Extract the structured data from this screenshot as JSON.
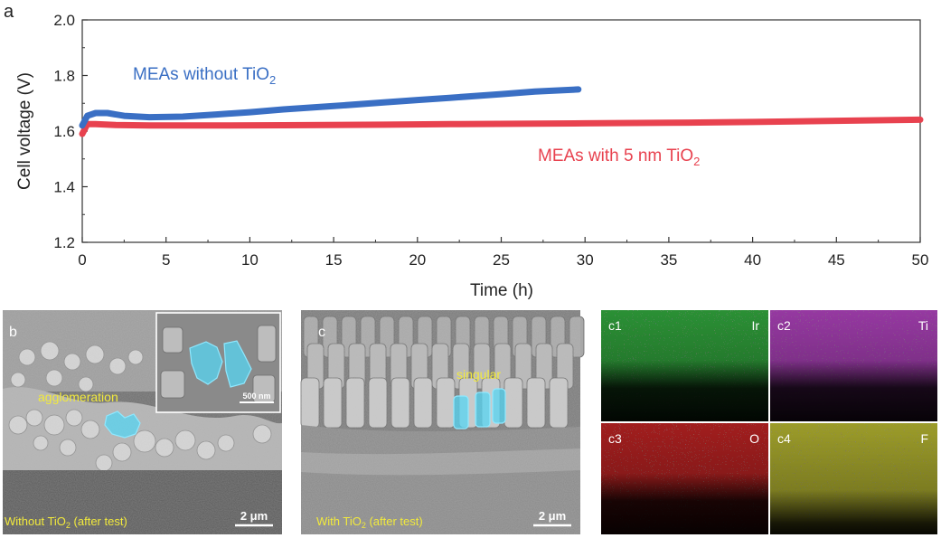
{
  "figure": {
    "panel_a_label": "a",
    "panel_b_label": "b",
    "panel_c_label": "c"
  },
  "chart_data": {
    "type": "line",
    "title": "",
    "xlabel": "Time (h)",
    "ylabel": "Cell voltage (V)",
    "xlim": [
      0,
      50
    ],
    "ylim": [
      1.2,
      2.0
    ],
    "xticks": [
      0,
      5,
      10,
      15,
      20,
      25,
      30,
      35,
      40,
      45,
      50
    ],
    "yticks": [
      1.2,
      1.4,
      1.6,
      1.8,
      2.0
    ],
    "ytick_labels": [
      "1.2",
      "1.4",
      "1.6",
      "1.8",
      "2.0"
    ],
    "grid": false,
    "series": [
      {
        "name": "MEAs without TiO",
        "subscript": "2",
        "color": "#3a6fc4",
        "x": [
          0,
          0.3,
          0.8,
          1.5,
          2.5,
          4,
          6,
          8,
          10,
          12,
          15,
          18,
          20,
          22,
          25,
          27,
          29.6
        ],
        "y": [
          1.62,
          1.655,
          1.665,
          1.665,
          1.655,
          1.65,
          1.652,
          1.66,
          1.668,
          1.678,
          1.69,
          1.703,
          1.712,
          1.72,
          1.733,
          1.742,
          1.75
        ]
      },
      {
        "name": "MEAs with 5 nm TiO",
        "subscript": "2",
        "color": "#e8424f",
        "x": [
          0,
          0.3,
          0.8,
          2,
          4,
          8,
          12,
          18,
          22,
          30,
          35,
          40,
          45,
          50
        ],
        "y": [
          1.59,
          1.625,
          1.625,
          1.622,
          1.62,
          1.62,
          1.621,
          1.623,
          1.625,
          1.628,
          1.63,
          1.633,
          1.637,
          1.641
        ]
      }
    ]
  },
  "micrographs": {
    "b": {
      "annotation": "agglomeration",
      "inset_scale": "500 nm",
      "scale_bar": "2 μm",
      "caption": "Without TiO",
      "caption_sub": "2",
      "caption_suffix": " (after test)"
    },
    "c": {
      "annotation": "singular",
      "scale_bar": "2 μm",
      "caption": "With TiO",
      "caption_sub": "2",
      "caption_suffix": " (after test)"
    }
  },
  "eds_maps": [
    {
      "panel": "c1",
      "element": "Ir",
      "color": "#3cc84a"
    },
    {
      "panel": "c2",
      "element": "Ti",
      "color": "#d04fe0"
    },
    {
      "panel": "c3",
      "element": "O",
      "color": "#e02a2a"
    },
    {
      "panel": "c4",
      "element": "F",
      "color": "#d8d83a"
    }
  ],
  "colors": {
    "annotation_yellow": "#f2ea3c",
    "highlight_cyan": "#55d4f2"
  }
}
